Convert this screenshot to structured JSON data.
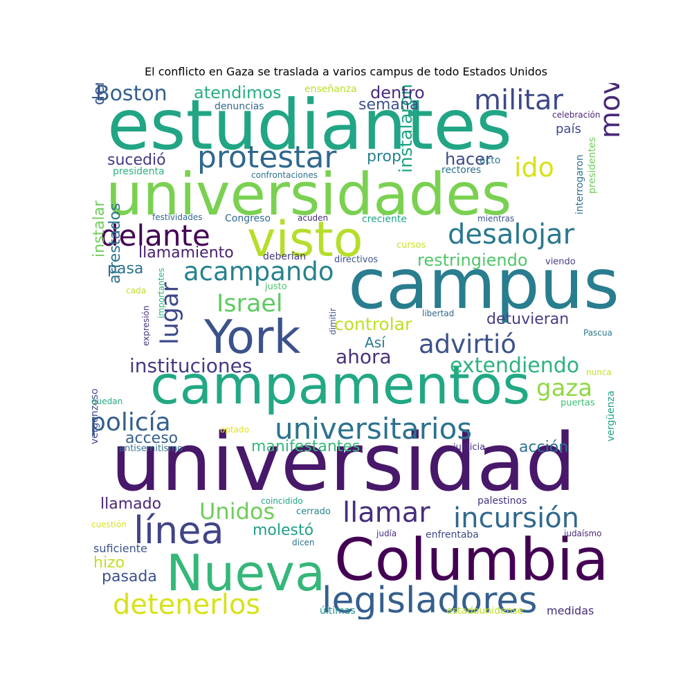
{
  "chart_data": {
    "type": "wordcloud",
    "title": "El conflicto en Gaza se traslada a varios campus de todo Estados Unidos",
    "words": [
      {
        "text": "estudiantes",
        "weight": 1.0,
        "color": "#21a585"
      },
      {
        "text": "universidad",
        "weight": 1.0,
        "color": "#48186a"
      },
      {
        "text": "campus",
        "weight": 0.98,
        "color": "#287d8e"
      },
      {
        "text": "universidades",
        "weight": 0.95,
        "color": "#7ad151"
      },
      {
        "text": "campamentos",
        "weight": 0.92,
        "color": "#22a884"
      },
      {
        "text": "Columbia",
        "weight": 0.9,
        "color": "#440154"
      },
      {
        "text": "Nueva",
        "weight": 0.85,
        "color": "#35b779"
      },
      {
        "text": "visto",
        "weight": 0.75,
        "color": "#b5de2b"
      },
      {
        "text": "York",
        "weight": 0.75,
        "color": "#3b528b"
      },
      {
        "text": "línea",
        "weight": 0.62,
        "color": "#414487"
      },
      {
        "text": "legisladores",
        "weight": 0.62,
        "color": "#355f8d"
      },
      {
        "text": "universitarios",
        "weight": 0.58,
        "color": "#2c728e"
      },
      {
        "text": "movimiento",
        "weight": 0.5,
        "color": "#482878"
      },
      {
        "text": "militar",
        "weight": 0.5,
        "color": "#3e4989"
      },
      {
        "text": "protestar",
        "weight": 0.5,
        "color": "#31688e"
      },
      {
        "text": "delante",
        "weight": 0.48,
        "color": "#440154"
      },
      {
        "text": "desalojar",
        "weight": 0.48,
        "color": "#2a788e"
      },
      {
        "text": "incursión",
        "weight": 0.45,
        "color": "#31688e"
      },
      {
        "text": "llamar",
        "weight": 0.45,
        "color": "#472d7b"
      },
      {
        "text": "detenerlos",
        "weight": 0.45,
        "color": "#d8e219"
      },
      {
        "text": "acampando",
        "weight": 0.45,
        "color": "#26828e"
      },
      {
        "text": "advirtió",
        "weight": 0.45,
        "color": "#3b528b"
      },
      {
        "text": "ido",
        "weight": 0.45,
        "color": "#d8e219"
      },
      {
        "text": "Israel",
        "weight": 0.42,
        "color": "#5ec962"
      },
      {
        "text": "lugar",
        "weight": 0.42,
        "color": "#3e4989"
      },
      {
        "text": "gaza",
        "weight": 0.42,
        "color": "#8fd744"
      },
      {
        "text": "policía",
        "weight": 0.4,
        "color": "#355f8d"
      },
      {
        "text": "Unidos",
        "weight": 0.4,
        "color": "#6ece58"
      },
      {
        "text": "Boston",
        "weight": 0.37,
        "color": "#355f8d"
      },
      {
        "text": "extendiendo",
        "weight": 0.37,
        "color": "#2db27d"
      },
      {
        "text": "instituciones",
        "weight": 0.35,
        "color": "#443a83"
      },
      {
        "text": "ahora",
        "weight": 0.35,
        "color": "#46327e"
      },
      {
        "text": "controlar",
        "weight": 0.3,
        "color": "#bddf26"
      },
      {
        "text": "restringiendo",
        "weight": 0.3,
        "color": "#52c569"
      },
      {
        "text": "hacer",
        "weight": 0.28,
        "color": "#3e4989"
      },
      {
        "text": "instalaron",
        "weight": 0.28,
        "color": "#20a486"
      },
      {
        "text": "atendimos",
        "weight": 0.28,
        "color": "#29af7f"
      },
      {
        "text": "dentro",
        "weight": 0.28,
        "color": "#472d7b"
      },
      {
        "text": "semana",
        "weight": 0.28,
        "color": "#3b528b"
      },
      {
        "text": "sucedió",
        "weight": 0.25,
        "color": "#453882"
      },
      {
        "text": "prop",
        "weight": 0.25,
        "color": "#26828e"
      },
      {
        "text": "denominaron",
        "weight": 0.25,
        "color": "#3b528b"
      },
      {
        "text": "llamamiento",
        "weight": 0.25,
        "color": "#481f70"
      },
      {
        "text": "pasa",
        "weight": 0.25,
        "color": "#2c728e"
      },
      {
        "text": "instalar",
        "weight": 0.25,
        "color": "#6ece58"
      },
      {
        "text": "arrestados",
        "weight": 0.25,
        "color": "#2c728e"
      },
      {
        "text": "detuvieran",
        "weight": 0.25,
        "color": "#433e85"
      },
      {
        "text": "acción",
        "weight": 0.25,
        "color": "#2c728e"
      },
      {
        "text": "manifestantes",
        "weight": 0.25,
        "color": "#35b779"
      },
      {
        "text": "molestó",
        "weight": 0.25,
        "color": "#1f9e89"
      },
      {
        "text": "acceso",
        "weight": 0.25,
        "color": "#355f8d"
      },
      {
        "text": "llamado",
        "weight": 0.25,
        "color": "#482878"
      },
      {
        "text": "pasada",
        "weight": 0.25,
        "color": "#3b528b"
      },
      {
        "text": "hizo",
        "weight": 0.25,
        "color": "#c2df23"
      },
      {
        "text": "Así",
        "weight": 0.22,
        "color": "#2a788e"
      },
      {
        "text": "país",
        "weight": 0.2,
        "color": "#3e4989"
      },
      {
        "text": "medidas",
        "weight": 0.18,
        "color": "#472d7b"
      },
      {
        "text": "suficiente",
        "weight": 0.18,
        "color": "#3b528b"
      },
      {
        "text": "vergonzoso",
        "weight": 0.18,
        "color": "#3e4989"
      },
      {
        "text": "interrogaron",
        "weight": 0.16,
        "color": "#2c728e"
      },
      {
        "text": "presidentes",
        "weight": 0.16,
        "color": "#6ece58"
      },
      {
        "text": "vergüenza",
        "weight": 0.16,
        "color": "#1f9e89"
      },
      {
        "text": "denuncias",
        "weight": 0.16,
        "color": "#31688e"
      },
      {
        "text": "enseñanza",
        "weight": 0.16,
        "color": "#b8de29"
      },
      {
        "text": "rectores",
        "weight": 0.16,
        "color": "#2c728e"
      },
      {
        "text": "acto",
        "weight": 0.16,
        "color": "#2a788e"
      },
      {
        "text": "presidenta",
        "weight": 0.16,
        "color": "#2db27d"
      },
      {
        "text": "Congreso",
        "weight": 0.16,
        "color": "#31688e"
      },
      {
        "text": "creciente",
        "weight": 0.16,
        "color": "#20a486"
      },
      {
        "text": "cursos",
        "weight": 0.16,
        "color": "#c8e020"
      },
      {
        "text": "deberían",
        "weight": 0.16,
        "color": "#453882"
      },
      {
        "text": "directivos",
        "weight": 0.16,
        "color": "#3b528b"
      },
      {
        "text": "viendo",
        "weight": 0.16,
        "color": "#433e85"
      },
      {
        "text": "justo",
        "weight": 0.16,
        "color": "#4ac16d"
      },
      {
        "text": "libertad",
        "weight": 0.16,
        "color": "#31688e"
      },
      {
        "text": "Pascua",
        "weight": 0.16,
        "color": "#2a788e"
      },
      {
        "text": "puertas",
        "weight": 0.16,
        "color": "#3dbc74"
      },
      {
        "text": "justicia",
        "weight": 0.16,
        "color": "#472d7b"
      },
      {
        "text": "antisemitismo",
        "weight": 0.16,
        "color": "#2c728e"
      },
      {
        "text": "palestinos",
        "weight": 0.16,
        "color": "#46327e"
      },
      {
        "text": "cerrado",
        "weight": 0.16,
        "color": "#26828e"
      },
      {
        "text": "enfrentaba",
        "weight": 0.16,
        "color": "#3e4989"
      },
      {
        "text": "últimas",
        "weight": 0.16,
        "color": "#21918c"
      },
      {
        "text": "estadounidense",
        "weight": 0.16,
        "color": "#bddf26"
      },
      {
        "text": "celebración",
        "weight": 0.14,
        "color": "#482878"
      },
      {
        "text": "confrontaciones",
        "weight": 0.14,
        "color": "#2c728e"
      },
      {
        "text": "festividades",
        "weight": 0.14,
        "color": "#31688e"
      },
      {
        "text": "acuden",
        "weight": 0.14,
        "color": "#472d7b"
      },
      {
        "text": "mientras",
        "weight": 0.14,
        "color": "#3b528b"
      },
      {
        "text": "cada",
        "weight": 0.14,
        "color": "#bddf26"
      },
      {
        "text": "importantes",
        "weight": 0.14,
        "color": "#2db27d"
      },
      {
        "text": "expresión",
        "weight": 0.14,
        "color": "#46327e"
      },
      {
        "text": "dimitir",
        "weight": 0.14,
        "color": "#3b528b"
      },
      {
        "text": "nunca",
        "weight": 0.14,
        "color": "#c2df23"
      },
      {
        "text": "quedan",
        "weight": 0.14,
        "color": "#25ab82"
      },
      {
        "text": "optado",
        "weight": 0.14,
        "color": "#e2e418"
      },
      {
        "text": "coincidido",
        "weight": 0.14,
        "color": "#20a486"
      },
      {
        "text": "cuestión",
        "weight": 0.14,
        "color": "#d8e219"
      },
      {
        "text": "dicen",
        "weight": 0.14,
        "color": "#2c728e"
      },
      {
        "text": "judía",
        "weight": 0.14,
        "color": "#472d7b"
      },
      {
        "text": "judaísmo",
        "weight": 0.14,
        "color": "#482878"
      }
    ]
  }
}
